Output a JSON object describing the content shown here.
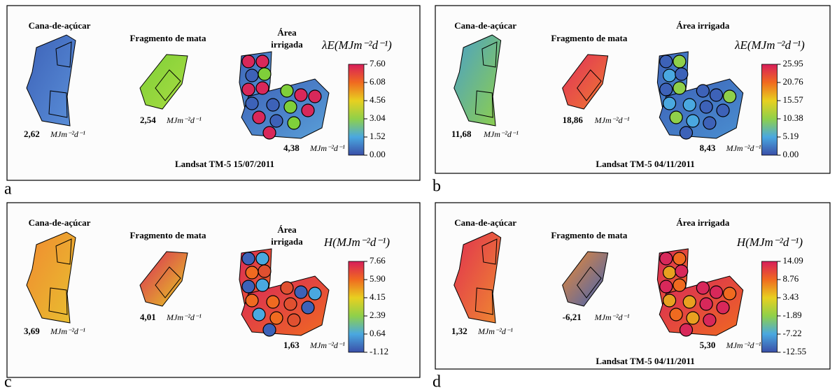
{
  "panels": [
    {
      "letter": "a",
      "cane_label": "Cana-de-açúcar",
      "forest_label": "Fragmento de mata",
      "irrigated_label": [
        "Área",
        "irrigada"
      ],
      "cane_value": "2,62",
      "forest_value": "2,54",
      "irrigated_value": "4,38",
      "unit": "MJm⁻²d⁻¹",
      "legend_title": "λE(MJm⁻²d⁻¹)",
      "ticks": [
        {
          "value": 7.6,
          "label": "7.60"
        },
        6.08,
        4.56,
        3.04,
        1.52,
        {
          "value": 0,
          "label": "0.00"
        }
      ],
      "caption": "Landsat TM-5 15/07/2011"
    },
    {
      "letter": "b",
      "cane_label": "Cana-de-açúcar",
      "forest_label": "Fragmento de mata",
      "irrigated_label": [
        "Área irrigada"
      ],
      "cane_value": "11,68",
      "forest_value": "18,86",
      "irrigated_value": "8,43",
      "unit": "MJm⁻²d⁻¹",
      "legend_title": "λE(MJm⁻²d⁻¹)",
      "ticks": [
        25.95,
        20.76,
        15.57,
        10.38,
        5.19,
        {
          "value": 0,
          "label": "0.00"
        }
      ],
      "caption": "Landsat TM-5  04/11/2011"
    },
    {
      "letter": "c",
      "cane_label": "Cana-de-açúcar",
      "forest_label": "Fragmento de mata",
      "irrigated_label": [
        "Área",
        "irrigada"
      ],
      "cane_value": "3,69",
      "forest_value": "4,01",
      "irrigated_value": "1,63",
      "unit": "MJm⁻²d⁻¹",
      "legend_title": "H(MJm⁻²d⁻¹)",
      "ticks": [
        7.66,
        {
          "value": 5.9,
          "label": "5.90"
        },
        4.15,
        2.39,
        0.64,
        -1.12
      ]
    },
    {
      "letter": "d",
      "cane_label": "Cana-de-açúcar",
      "forest_label": "Fragmento de mata",
      "irrigated_label": [
        "Área irrigada"
      ],
      "cane_value": "1,32",
      "forest_value": "-6,21",
      "irrigated_value": "5,30",
      "unit": "MJm⁻²d⁻¹",
      "legend_title": "H(MJm⁻²d⁻¹)",
      "ticks": [
        14.09,
        8.76,
        3.43,
        -1.89,
        -7.22,
        -12.55
      ],
      "caption": "Landsat TM-5 04/11/2011"
    }
  ]
}
